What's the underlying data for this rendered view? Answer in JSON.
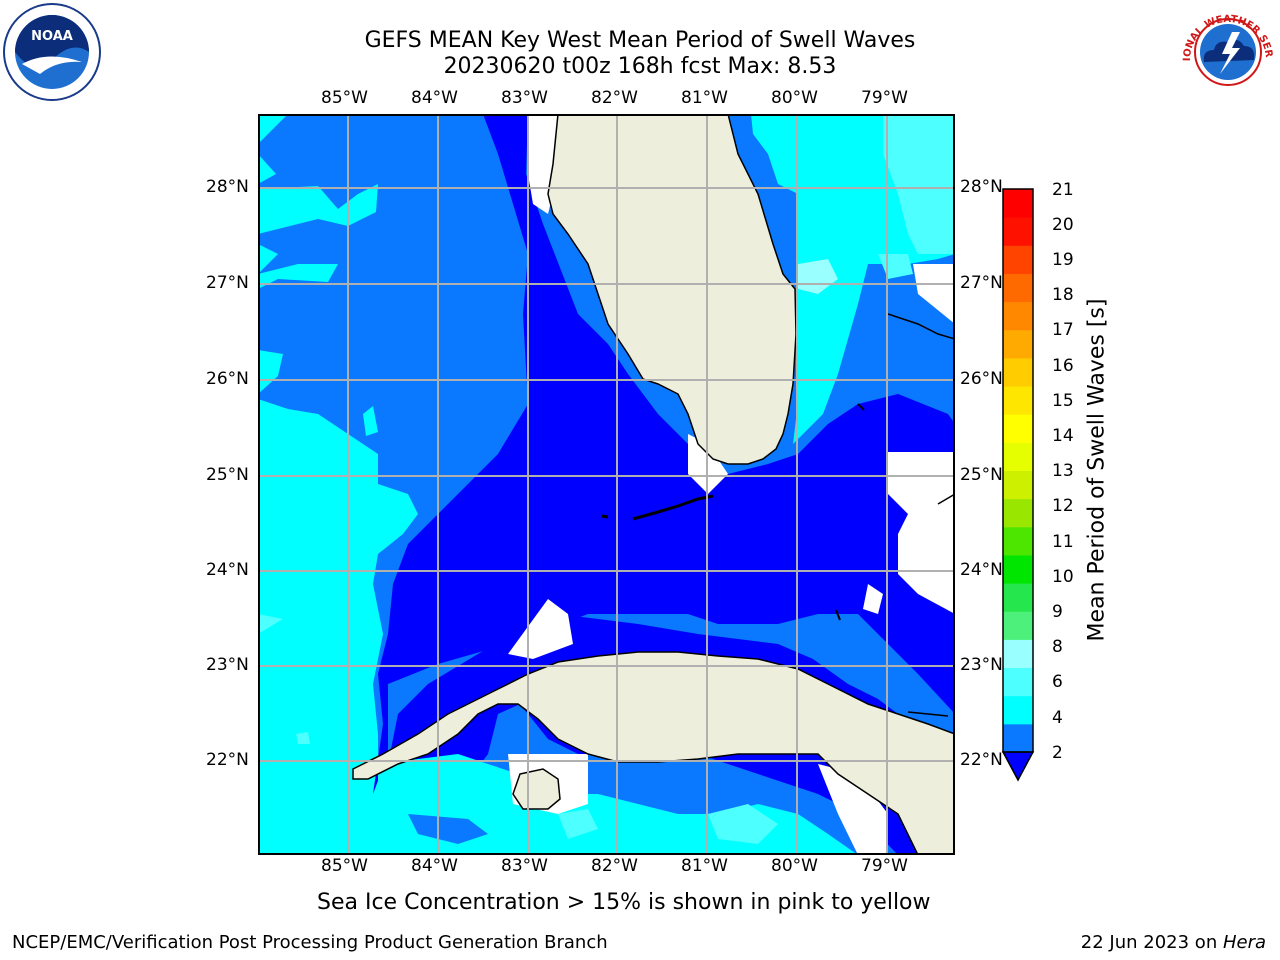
{
  "title_line1": "GEFS MEAN Key West Mean Period of Swell Waves",
  "title_line2": "20230620 t00z 168h fcst   Max: 8.53",
  "logo_left_text": "NOAA",
  "logo_right_text": "NATIONAL WEATHER SERVICE",
  "lon_labels": [
    "85°W",
    "84°W",
    "83°W",
    "82°W",
    "81°W",
    "80°W",
    "79°W"
  ],
  "lat_labels": [
    "28°N",
    "27°N",
    "26°N",
    "25°N",
    "24°N",
    "23°N",
    "22°N"
  ],
  "colorbar": {
    "label": "Mean Period of Swell Waves [s]",
    "ticks": [
      "21",
      "20",
      "19",
      "18",
      "17",
      "16",
      "15",
      "14",
      "13",
      "12",
      "11",
      "10",
      "9",
      "8",
      "6",
      "4",
      "2"
    ],
    "colors": [
      "#0a78ff",
      "#00ffff",
      "#4dffff",
      "#99ffff",
      "#4df07a",
      "#26e64d",
      "#00e600",
      "#4de600",
      "#99e600",
      "#ccf000",
      "#e6ff00",
      "#ffff00",
      "#ffe600",
      "#ffcc00",
      "#ffaa00",
      "#ff8800",
      "#ff6a00",
      "#ff4400",
      "#ff1100",
      "#ff0000"
    ]
  },
  "colors": {
    "land": "#eeeedc",
    "deep_blue": "#0000ff",
    "mid_blue": "#0a78ff",
    "cyan": "#00ffff",
    "light_cyan": "#4dffff",
    "pale_cyan": "#99ffff",
    "grid": "#b0b0b0"
  },
  "sea_ice_note": "Sea Ice Concentration > 15% is shown in pink to yellow",
  "footer_left": "NCEP/EMC/Verification Post Processing Product Generation Branch",
  "footer_date": "22 Jun 2023 on ",
  "footer_host": "Hera"
}
